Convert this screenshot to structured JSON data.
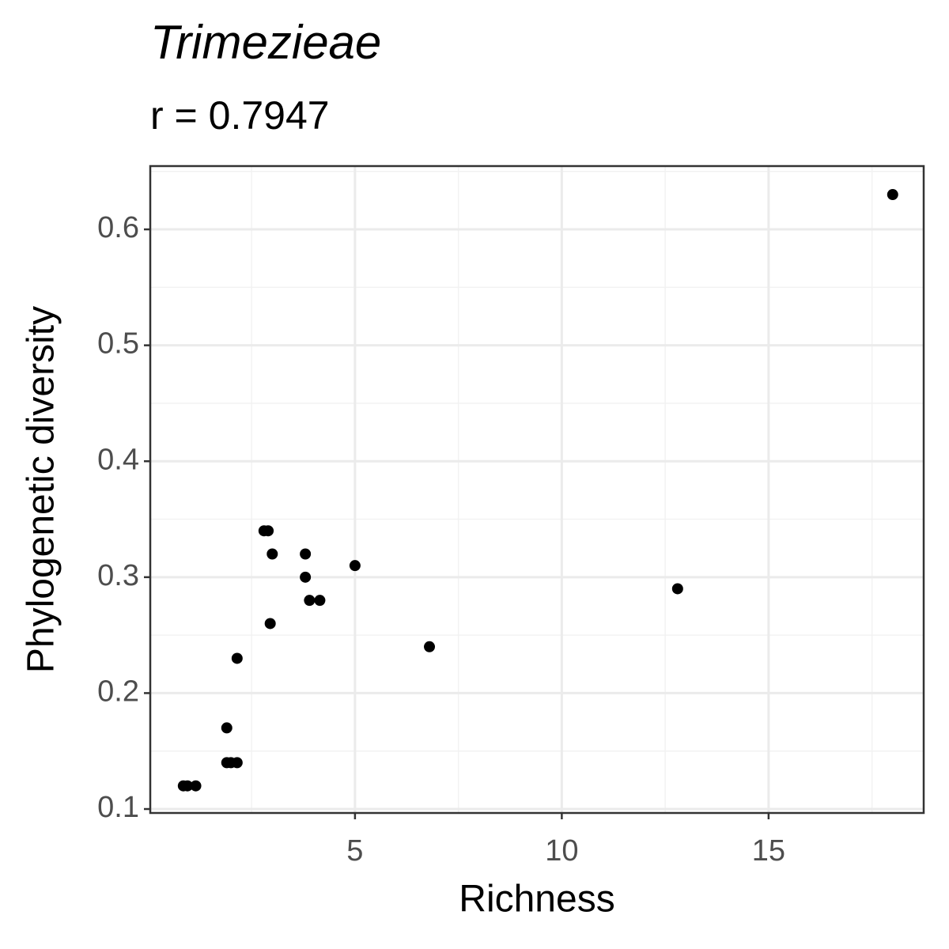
{
  "chart_data": {
    "type": "scatter",
    "title": "Trimezieae",
    "subtitle": "r = 0.7947",
    "x_label": "Richness",
    "y_label": "Phylogenetic diversity",
    "x": [
      18,
      12.8,
      6.8,
      5,
      2.8,
      2.9,
      3.0,
      3.8,
      3.8,
      3.9,
      4.15,
      2.95,
      2.15,
      1.9,
      1.9,
      2.0,
      2.15,
      0.85,
      0.95,
      1.15
    ],
    "y": [
      0.63,
      0.29,
      0.24,
      0.31,
      0.34,
      0.34,
      0.32,
      0.32,
      0.3,
      0.28,
      0.28,
      0.26,
      0.23,
      0.17,
      0.14,
      0.14,
      0.14,
      0.12,
      0.12,
      0.12
    ],
    "color": "#000000",
    "xlim": [
      0.05,
      18.75
    ],
    "ylim": [
      0.0966,
      0.6546
    ],
    "xticks": [
      5,
      10,
      15
    ],
    "yticks": [
      0.1,
      0.2,
      0.3,
      0.4,
      0.5,
      0.6
    ],
    "grid": true
  }
}
